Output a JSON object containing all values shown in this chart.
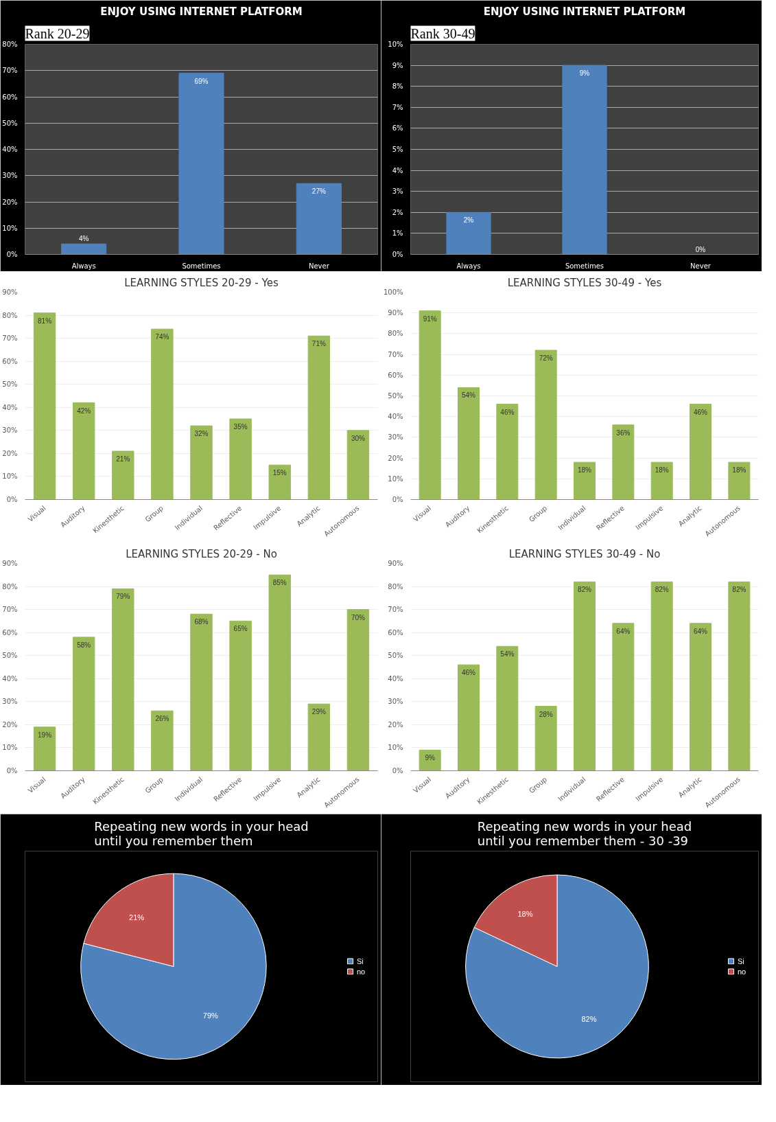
{
  "chart_data": [
    {
      "type": "bar",
      "subtitle": "Rank 20-29",
      "title": "ENJOY USING INTERNET PLATFORM",
      "categories": [
        "Always",
        "Sometimes",
        "Never"
      ],
      "values": [
        4,
        69,
        27
      ],
      "color": "#4f81bd",
      "value_labels": [
        "4%",
        "69%",
        "27%"
      ],
      "ylim": [
        0,
        80
      ],
      "yticks": [
        {
          "value": 0,
          "label": "0%"
        },
        {
          "value": 10,
          "label": "10%"
        },
        {
          "value": 20,
          "label": "20%"
        },
        {
          "value": 30,
          "label": "30%"
        },
        {
          "value": 40,
          "label": "40%"
        },
        {
          "value": 50,
          "label": "50%"
        },
        {
          "value": 60,
          "label": "60%"
        },
        {
          "value": 70,
          "label": "70%"
        },
        {
          "value": 80,
          "label": "80%"
        }
      ],
      "grid": "y"
    },
    {
      "type": "bar",
      "subtitle": "Rank 30-49",
      "title": "ENJOY USING INTERNET PLATFORM",
      "categories": [
        "Always",
        "Sometimes",
        "Never"
      ],
      "values": [
        2,
        9,
        0
      ],
      "color": "#4f81bd",
      "value_labels": [
        "2%",
        "9%",
        "0%"
      ],
      "ylim": [
        0,
        10
      ],
      "yticks": [
        {
          "value": 0,
          "label": "0%"
        },
        {
          "value": 1,
          "label": "1%"
        },
        {
          "value": 2,
          "label": "2%"
        },
        {
          "value": 3,
          "label": "3%"
        },
        {
          "value": 4,
          "label": "4%"
        },
        {
          "value": 5,
          "label": "5%"
        },
        {
          "value": 6,
          "label": "6%"
        },
        {
          "value": 7,
          "label": "7%"
        },
        {
          "value": 8,
          "label": "8%"
        },
        {
          "value": 9,
          "label": "9%"
        },
        {
          "value": 10,
          "label": "10%"
        }
      ],
      "grid": "y"
    },
    {
      "type": "bar",
      "title": "LEARNING STYLES 20-29 - Yes",
      "categories": [
        "Visual",
        "Auditory",
        "Kinesthetic",
        "Group",
        "Individual",
        "Reflective",
        "Impulsive",
        "Analytic",
        "Autonomous"
      ],
      "values": [
        81,
        42,
        21,
        74,
        32,
        35,
        15,
        71,
        30
      ],
      "color": "#9bbb59",
      "value_labels": [
        "81%",
        "42%",
        "21%",
        "74%",
        "32%",
        "35%",
        "15%",
        "71%",
        "30%"
      ],
      "ylim": [
        0,
        90
      ],
      "yticks": [
        {
          "value": 0,
          "label": "0%"
        },
        {
          "value": 10,
          "label": "10%"
        },
        {
          "value": 20,
          "label": "20%"
        },
        {
          "value": 30,
          "label": "30%"
        },
        {
          "value": 40,
          "label": "40%"
        },
        {
          "value": 50,
          "label": "50%"
        },
        {
          "value": 60,
          "label": "60%"
        },
        {
          "value": 70,
          "label": "70%"
        },
        {
          "value": 80,
          "label": "80%"
        },
        {
          "value": 90,
          "label": "90%"
        }
      ],
      "grid": "y"
    },
    {
      "type": "bar",
      "title": "LEARNING STYLES 30-49 - Yes",
      "categories": [
        "Visual",
        "Auditory",
        "Kinesthetic",
        "Group",
        "Individual",
        "Reflective",
        "Impulsive",
        "Analytic",
        "Autonomous"
      ],
      "values": [
        91,
        54,
        46,
        72,
        18,
        36,
        18,
        46,
        18
      ],
      "color": "#9bbb59",
      "value_labels": [
        "91%",
        "54%",
        "46%",
        "72%",
        "18%",
        "36%",
        "18%",
        "46%",
        "18%"
      ],
      "ylim": [
        0,
        100
      ],
      "yticks": [
        {
          "value": 0,
          "label": "0%"
        },
        {
          "value": 10,
          "label": "10%"
        },
        {
          "value": 20,
          "label": "20%"
        },
        {
          "value": 30,
          "label": "30%"
        },
        {
          "value": 40,
          "label": "40%"
        },
        {
          "value": 50,
          "label": "50%"
        },
        {
          "value": 60,
          "label": "60%"
        },
        {
          "value": 70,
          "label": "70%"
        },
        {
          "value": 80,
          "label": "80%"
        },
        {
          "value": 90,
          "label": "90%"
        },
        {
          "value": 100,
          "label": "100%"
        }
      ],
      "grid": "y"
    },
    {
      "type": "bar",
      "title": "LEARNING STYLES 20-29 - No",
      "categories": [
        "Visual",
        "Auditory",
        "Kinesthetic",
        "Group",
        "Individual",
        "Reflective",
        "Impulsive",
        "Analytic",
        "Autonomous"
      ],
      "values": [
        19,
        58,
        79,
        26,
        68,
        65,
        85,
        29,
        70
      ],
      "color": "#9bbb59",
      "value_labels": [
        "19%",
        "58%",
        "79%",
        "26%",
        "68%",
        "65%",
        "85%",
        "29%",
        "70%"
      ],
      "ylim": [
        0,
        90
      ],
      "yticks": [
        {
          "value": 0,
          "label": "0%"
        },
        {
          "value": 10,
          "label": "10%"
        },
        {
          "value": 20,
          "label": "20%"
        },
        {
          "value": 30,
          "label": "30%"
        },
        {
          "value": 40,
          "label": "40%"
        },
        {
          "value": 50,
          "label": "50%"
        },
        {
          "value": 60,
          "label": "60%"
        },
        {
          "value": 70,
          "label": "70%"
        },
        {
          "value": 80,
          "label": "80%"
        },
        {
          "value": 90,
          "label": "90%"
        }
      ],
      "grid": "y"
    },
    {
      "type": "bar",
      "title": "LEARNING STYLES 30-49 - No",
      "categories": [
        "Visual",
        "Auditory",
        "Kinesthetic",
        "Group",
        "Individual",
        "Reflective",
        "Impulsive",
        "Analytic",
        "Autonomous"
      ],
      "values": [
        9,
        46,
        54,
        28,
        82,
        64,
        82,
        64,
        82
      ],
      "color": "#9bbb59",
      "value_labels": [
        "9%",
        "46%",
        "54%",
        "28%",
        "82%",
        "64%",
        "82%",
        "64%",
        "82%"
      ],
      "ylim": [
        0,
        90
      ],
      "yticks": [
        {
          "value": 0,
          "label": "0%"
        },
        {
          "value": 10,
          "label": "10%"
        },
        {
          "value": 20,
          "label": "20%"
        },
        {
          "value": 30,
          "label": "30%"
        },
        {
          "value": 40,
          "label": "40%"
        },
        {
          "value": 50,
          "label": "50%"
        },
        {
          "value": 60,
          "label": "60%"
        },
        {
          "value": 70,
          "label": "70%"
        },
        {
          "value": 80,
          "label": "80%"
        },
        {
          "value": 90,
          "label": "90%"
        }
      ],
      "grid": "y"
    },
    {
      "type": "pie",
      "title": "Repeating new words in your head\nuntil you remember them",
      "categories": [
        "Si",
        "no"
      ],
      "values": [
        79,
        21
      ],
      "colors": [
        "#4f81bd",
        "#c0504d"
      ],
      "value_labels": [
        "79%",
        "21%"
      ],
      "legend": "right"
    },
    {
      "type": "pie",
      "title": "Repeating new words in your head\nuntil you remember them - 30 -39",
      "categories": [
        "Si",
        "no"
      ],
      "values": [
        82,
        18
      ],
      "colors": [
        "#4f81bd",
        "#c0504d"
      ],
      "value_labels": [
        "82%",
        "18%"
      ],
      "legend": "right"
    }
  ]
}
